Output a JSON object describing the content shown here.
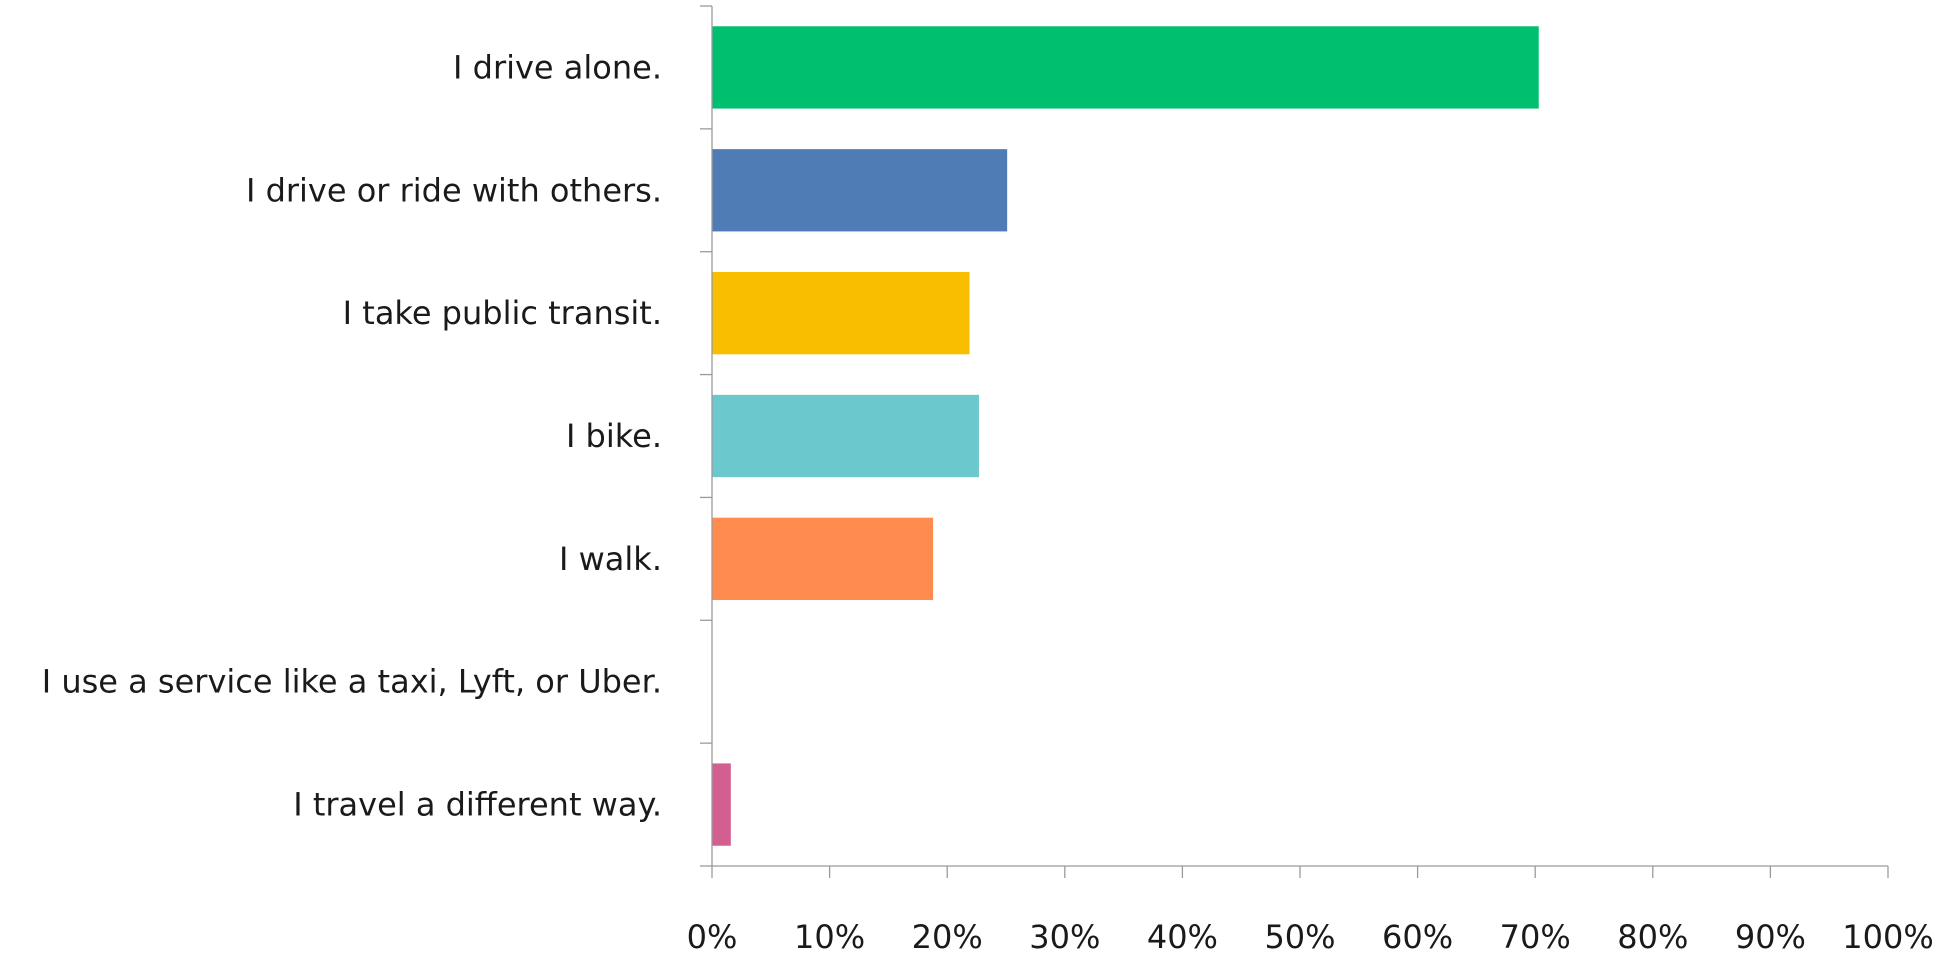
{
  "chart_data": {
    "type": "bar",
    "orientation": "horizontal",
    "categories": [
      "I drive alone.",
      "I drive or ride with others.",
      "I take public transit.",
      "I bike.",
      "I walk.",
      "I use a service like a taxi, Lyft, or Uber.",
      "I travel a different way."
    ],
    "values": [
      70.3,
      25.1,
      21.9,
      22.7,
      18.8,
      0,
      1.6
    ],
    "colors": [
      "#00bf6f",
      "#507cb6",
      "#f9be00",
      "#6bc8cd",
      "#ff8b4f",
      "#7d5cc6",
      "#d25f90"
    ],
    "xlim": [
      0,
      100
    ],
    "x_ticks": [
      "0%",
      "10%",
      "20%",
      "30%",
      "40%",
      "50%",
      "60%",
      "70%",
      "80%",
      "90%",
      "100%"
    ],
    "title": "",
    "xlabel": "",
    "ylabel": "",
    "grid": false,
    "legend": "none"
  }
}
